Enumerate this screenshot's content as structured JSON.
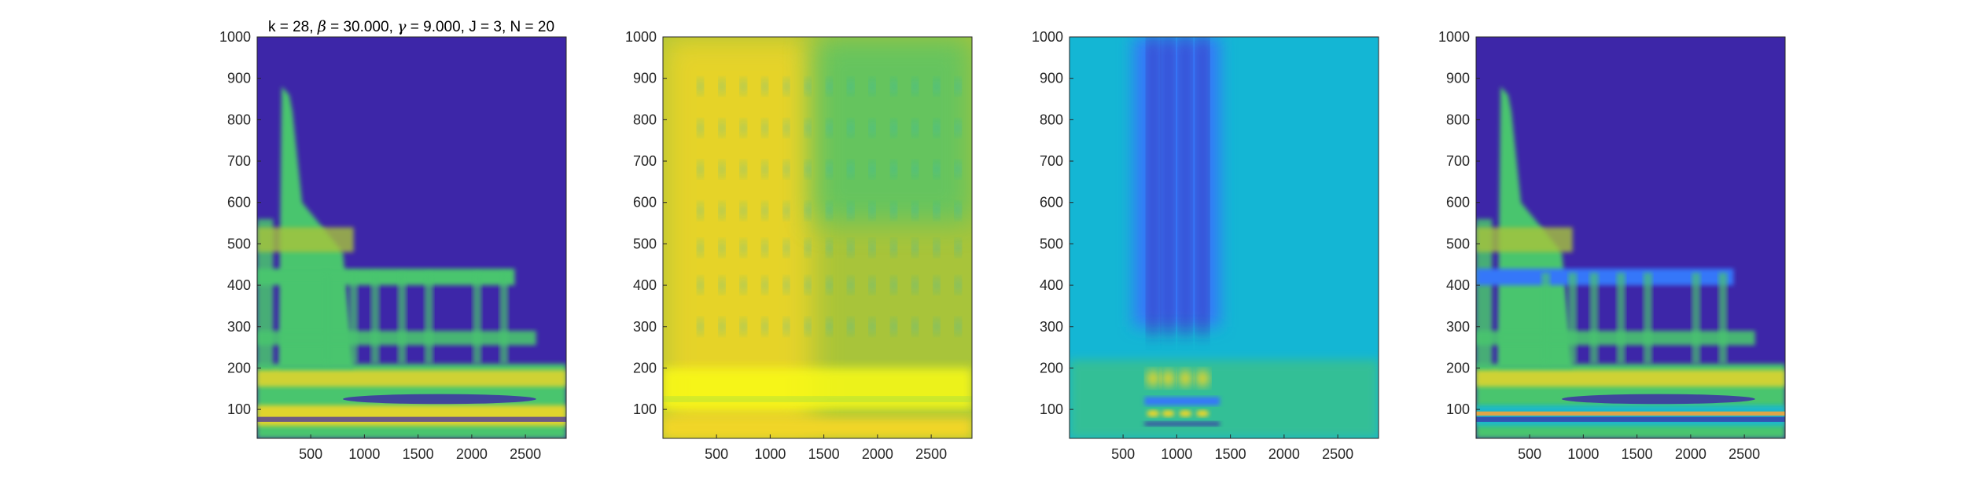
{
  "figure": {
    "title_parts": [
      {
        "text": "k = 28, ",
        "style": "normal"
      },
      {
        "text": "β",
        "style": "symbol"
      },
      {
        "text": " = 30.000, ",
        "style": "normal"
      },
      {
        "text": "γ",
        "style": "symbol"
      },
      {
        "text": " = 9.000, J = 3, N = 20",
        "style": "normal"
      }
    ]
  },
  "colors": {
    "background_low": "#3d26a8",
    "blue": "#3677f9",
    "cyan": "#14b6d4",
    "green": "#4ac56e",
    "lime": "#a8c43a",
    "yellow": "#f1d626",
    "bright_yellow": "#f9fb15",
    "orange": "#f4a43a",
    "axis": "#262626"
  },
  "chart_data": [
    {
      "type": "heatmap",
      "description_id": "panel-1",
      "xlim": [
        1,
        2880
      ],
      "ylim": [
        30,
        1000
      ],
      "xticks": [
        500,
        1000,
        1500,
        2000,
        2500
      ],
      "yticks": [
        100,
        200,
        300,
        400,
        500,
        600,
        700,
        800,
        900,
        1000
      ],
      "title_index": 0
    },
    {
      "type": "heatmap",
      "description_id": "panel-2",
      "xlim": [
        1,
        2880
      ],
      "ylim": [
        30,
        1000
      ],
      "xticks": [
        500,
        1000,
        1500,
        2000,
        2500
      ],
      "yticks": [
        100,
        200,
        300,
        400,
        500,
        600,
        700,
        800,
        900,
        1000
      ]
    },
    {
      "type": "heatmap",
      "description_id": "panel-3",
      "xlim": [
        1,
        2880
      ],
      "ylim": [
        30,
        1000
      ],
      "xticks": [
        500,
        1000,
        1500,
        2000,
        2500
      ],
      "yticks": [
        100,
        200,
        300,
        400,
        500,
        600,
        700,
        800,
        900,
        1000
      ]
    },
    {
      "type": "heatmap",
      "description_id": "panel-4",
      "xlim": [
        1,
        2880
      ],
      "ylim": [
        30,
        1000
      ],
      "xticks": [
        500,
        1000,
        1500,
        2000,
        2500
      ],
      "yticks": [
        100,
        200,
        300,
        400,
        500,
        600,
        700,
        800,
        900,
        1000
      ]
    }
  ]
}
